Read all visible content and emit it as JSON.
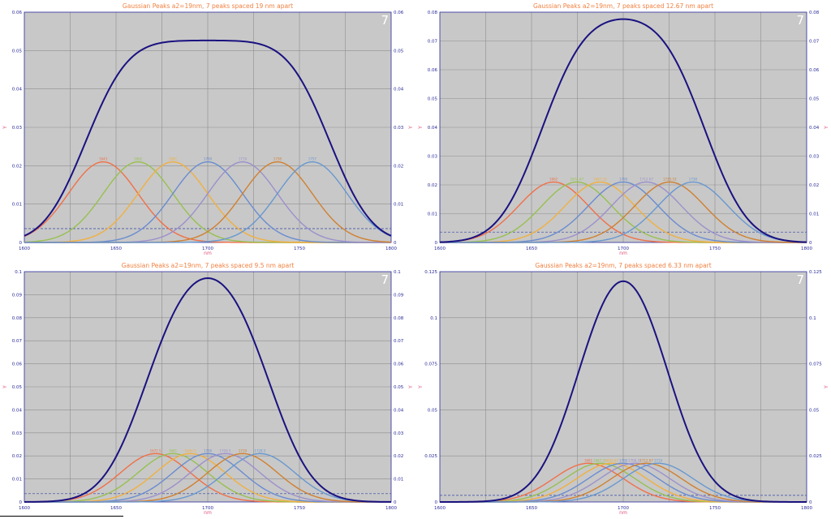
{
  "chart_data": [
    {
      "type": "line",
      "title": "Gaussian Peaks a2=19nm, 7 peaks spaced 19 nm apart",
      "badge": "7",
      "xlabel": "nm",
      "ylabel": "Y",
      "xlim": [
        1600,
        1800
      ],
      "ylim": [
        0,
        0.06
      ],
      "xticks": [
        "1600",
        "1650",
        "1700",
        "1750",
        "1800"
      ],
      "yticks": [
        "0",
        "0.01",
        "0.02",
        "0.03",
        "0.04",
        "0.05",
        "0.06"
      ],
      "y2ticks": [
        "0",
        "0.01",
        "0.02",
        "0.03",
        "0.04",
        "0.05",
        "0.06"
      ],
      "grid": true,
      "baseline": 0.0036,
      "peak_amplitude": 0.021,
      "sigma": 19,
      "peak_labels": [
        "1643",
        "1662",
        "1681",
        "1700",
        "1719",
        "1738",
        "1757"
      ],
      "series": [
        {
          "center": 1643,
          "color": "#f07048"
        },
        {
          "center": 1662,
          "color": "#98c050"
        },
        {
          "center": 1681,
          "color": "#f0b040"
        },
        {
          "center": 1700,
          "color": "#6a8cd0"
        },
        {
          "center": 1719,
          "color": "#9c90cc"
        },
        {
          "center": 1738,
          "color": "#d08030"
        },
        {
          "center": 1757,
          "color": "#6898d0"
        }
      ],
      "sum_color": "#1a1280"
    },
    {
      "type": "line",
      "title": "Gaussian Peaks a2=19nm, 7 peaks spaced 12.67 nm apart",
      "badge": "7",
      "xlabel": "nm",
      "ylabel": "Y",
      "xlim": [
        1600,
        1800
      ],
      "ylim": [
        0,
        0.08
      ],
      "xticks": [
        "1600",
        "1650",
        "1700",
        "1750",
        "1800"
      ],
      "yticks": [
        "0",
        "0.01",
        "0.02",
        "0.03",
        "0.04",
        "0.05",
        "0.06",
        "0.07",
        "0.08"
      ],
      "y2ticks": [
        "0",
        "0.01",
        "0.02",
        "0.03",
        "0.04",
        "0.05",
        "0.06",
        "0.07",
        "0.08"
      ],
      "grid": true,
      "baseline": 0.0036,
      "peak_amplitude": 0.021,
      "sigma": 19,
      "peak_labels": [
        "1662",
        "1674.67",
        "1687.33",
        "1700",
        "1712.67",
        "1725.33",
        "1738"
      ],
      "series": [
        {
          "center": 1662,
          "color": "#f07048"
        },
        {
          "center": 1674.67,
          "color": "#98c050"
        },
        {
          "center": 1687.33,
          "color": "#f0b040"
        },
        {
          "center": 1700,
          "color": "#6a8cd0"
        },
        {
          "center": 1712.67,
          "color": "#9c90cc"
        },
        {
          "center": 1725.33,
          "color": "#d08030"
        },
        {
          "center": 1738,
          "color": "#6898d0"
        }
      ],
      "sum_color": "#1a1280"
    },
    {
      "type": "line",
      "title": "Gaussian Peaks a2=19nm, 7 peaks spaced 9.5 nm apart",
      "badge": "7",
      "xlabel": "nm",
      "ylabel": "Y",
      "xlim": [
        1600,
        1800
      ],
      "ylim": [
        0,
        0.1
      ],
      "xticks": [
        "1600",
        "1650",
        "1700",
        "1750",
        "1800"
      ],
      "yticks": [
        "0",
        "0.01",
        "0.02",
        "0.03",
        "0.04",
        "0.05",
        "0.06",
        "0.07",
        "0.08",
        "0.09",
        "0.1"
      ],
      "y2ticks": [
        "0",
        "0.01",
        "0.02",
        "0.03",
        "0.04",
        "0.05",
        "0.06",
        "0.07",
        "0.08",
        "0.09",
        "0.1"
      ],
      "grid": true,
      "baseline": 0.0036,
      "peak_amplitude": 0.021,
      "sigma": 19,
      "peak_labels": [
        "1671.5",
        "1681",
        "1690.5",
        "1700",
        "1709.5",
        "1719",
        "1728.5"
      ],
      "series": [
        {
          "center": 1671.5,
          "color": "#f07048"
        },
        {
          "center": 1681,
          "color": "#98c050"
        },
        {
          "center": 1690.5,
          "color": "#f0b040"
        },
        {
          "center": 1700,
          "color": "#6a8cd0"
        },
        {
          "center": 1709.5,
          "color": "#9c90cc"
        },
        {
          "center": 1719,
          "color": "#d08030"
        },
        {
          "center": 1728.5,
          "color": "#6898d0"
        }
      ],
      "sum_color": "#1a1280"
    },
    {
      "type": "line",
      "title": "Gaussian Peaks a2=19nm, 7 peaks spaced 6.33 nm apart",
      "badge": "7",
      "xlabel": "nm",
      "ylabel": "Y",
      "xlim": [
        1600,
        1800
      ],
      "ylim": [
        0,
        0.125
      ],
      "xticks": [
        "1600",
        "1650",
        "1700",
        "1750",
        "1800"
      ],
      "yticks": [
        "0",
        "0.025",
        "0.05",
        "0.075",
        "0.1",
        "0.125"
      ],
      "y2ticks": [
        "0",
        "0.025",
        "0.05",
        "0.075",
        "0.1",
        "0.125"
      ],
      "grid": true,
      "baseline": 0.0036,
      "peak_amplitude": 0.021,
      "sigma": 19,
      "peak_labels": [
        "1681",
        "1687.33",
        "1693.67",
        "1700",
        "1706.33",
        "1712.67",
        "1719"
      ],
      "series": [
        {
          "center": 1681,
          "color": "#f07048"
        },
        {
          "center": 1687.33,
          "color": "#98c050"
        },
        {
          "center": 1693.67,
          "color": "#f0b040"
        },
        {
          "center": 1700,
          "color": "#6a8cd0"
        },
        {
          "center": 1706.33,
          "color": "#9c90cc"
        },
        {
          "center": 1712.67,
          "color": "#d08030"
        },
        {
          "center": 1719,
          "color": "#6898d0"
        }
      ],
      "sum_color": "#1a1280"
    }
  ],
  "colors": {
    "plot_bg": "#c8c8c8",
    "grid": "#8e8e8e",
    "axis": "#2a2a9a",
    "baseline": "#4a5aa8",
    "title": "#f08040"
  }
}
